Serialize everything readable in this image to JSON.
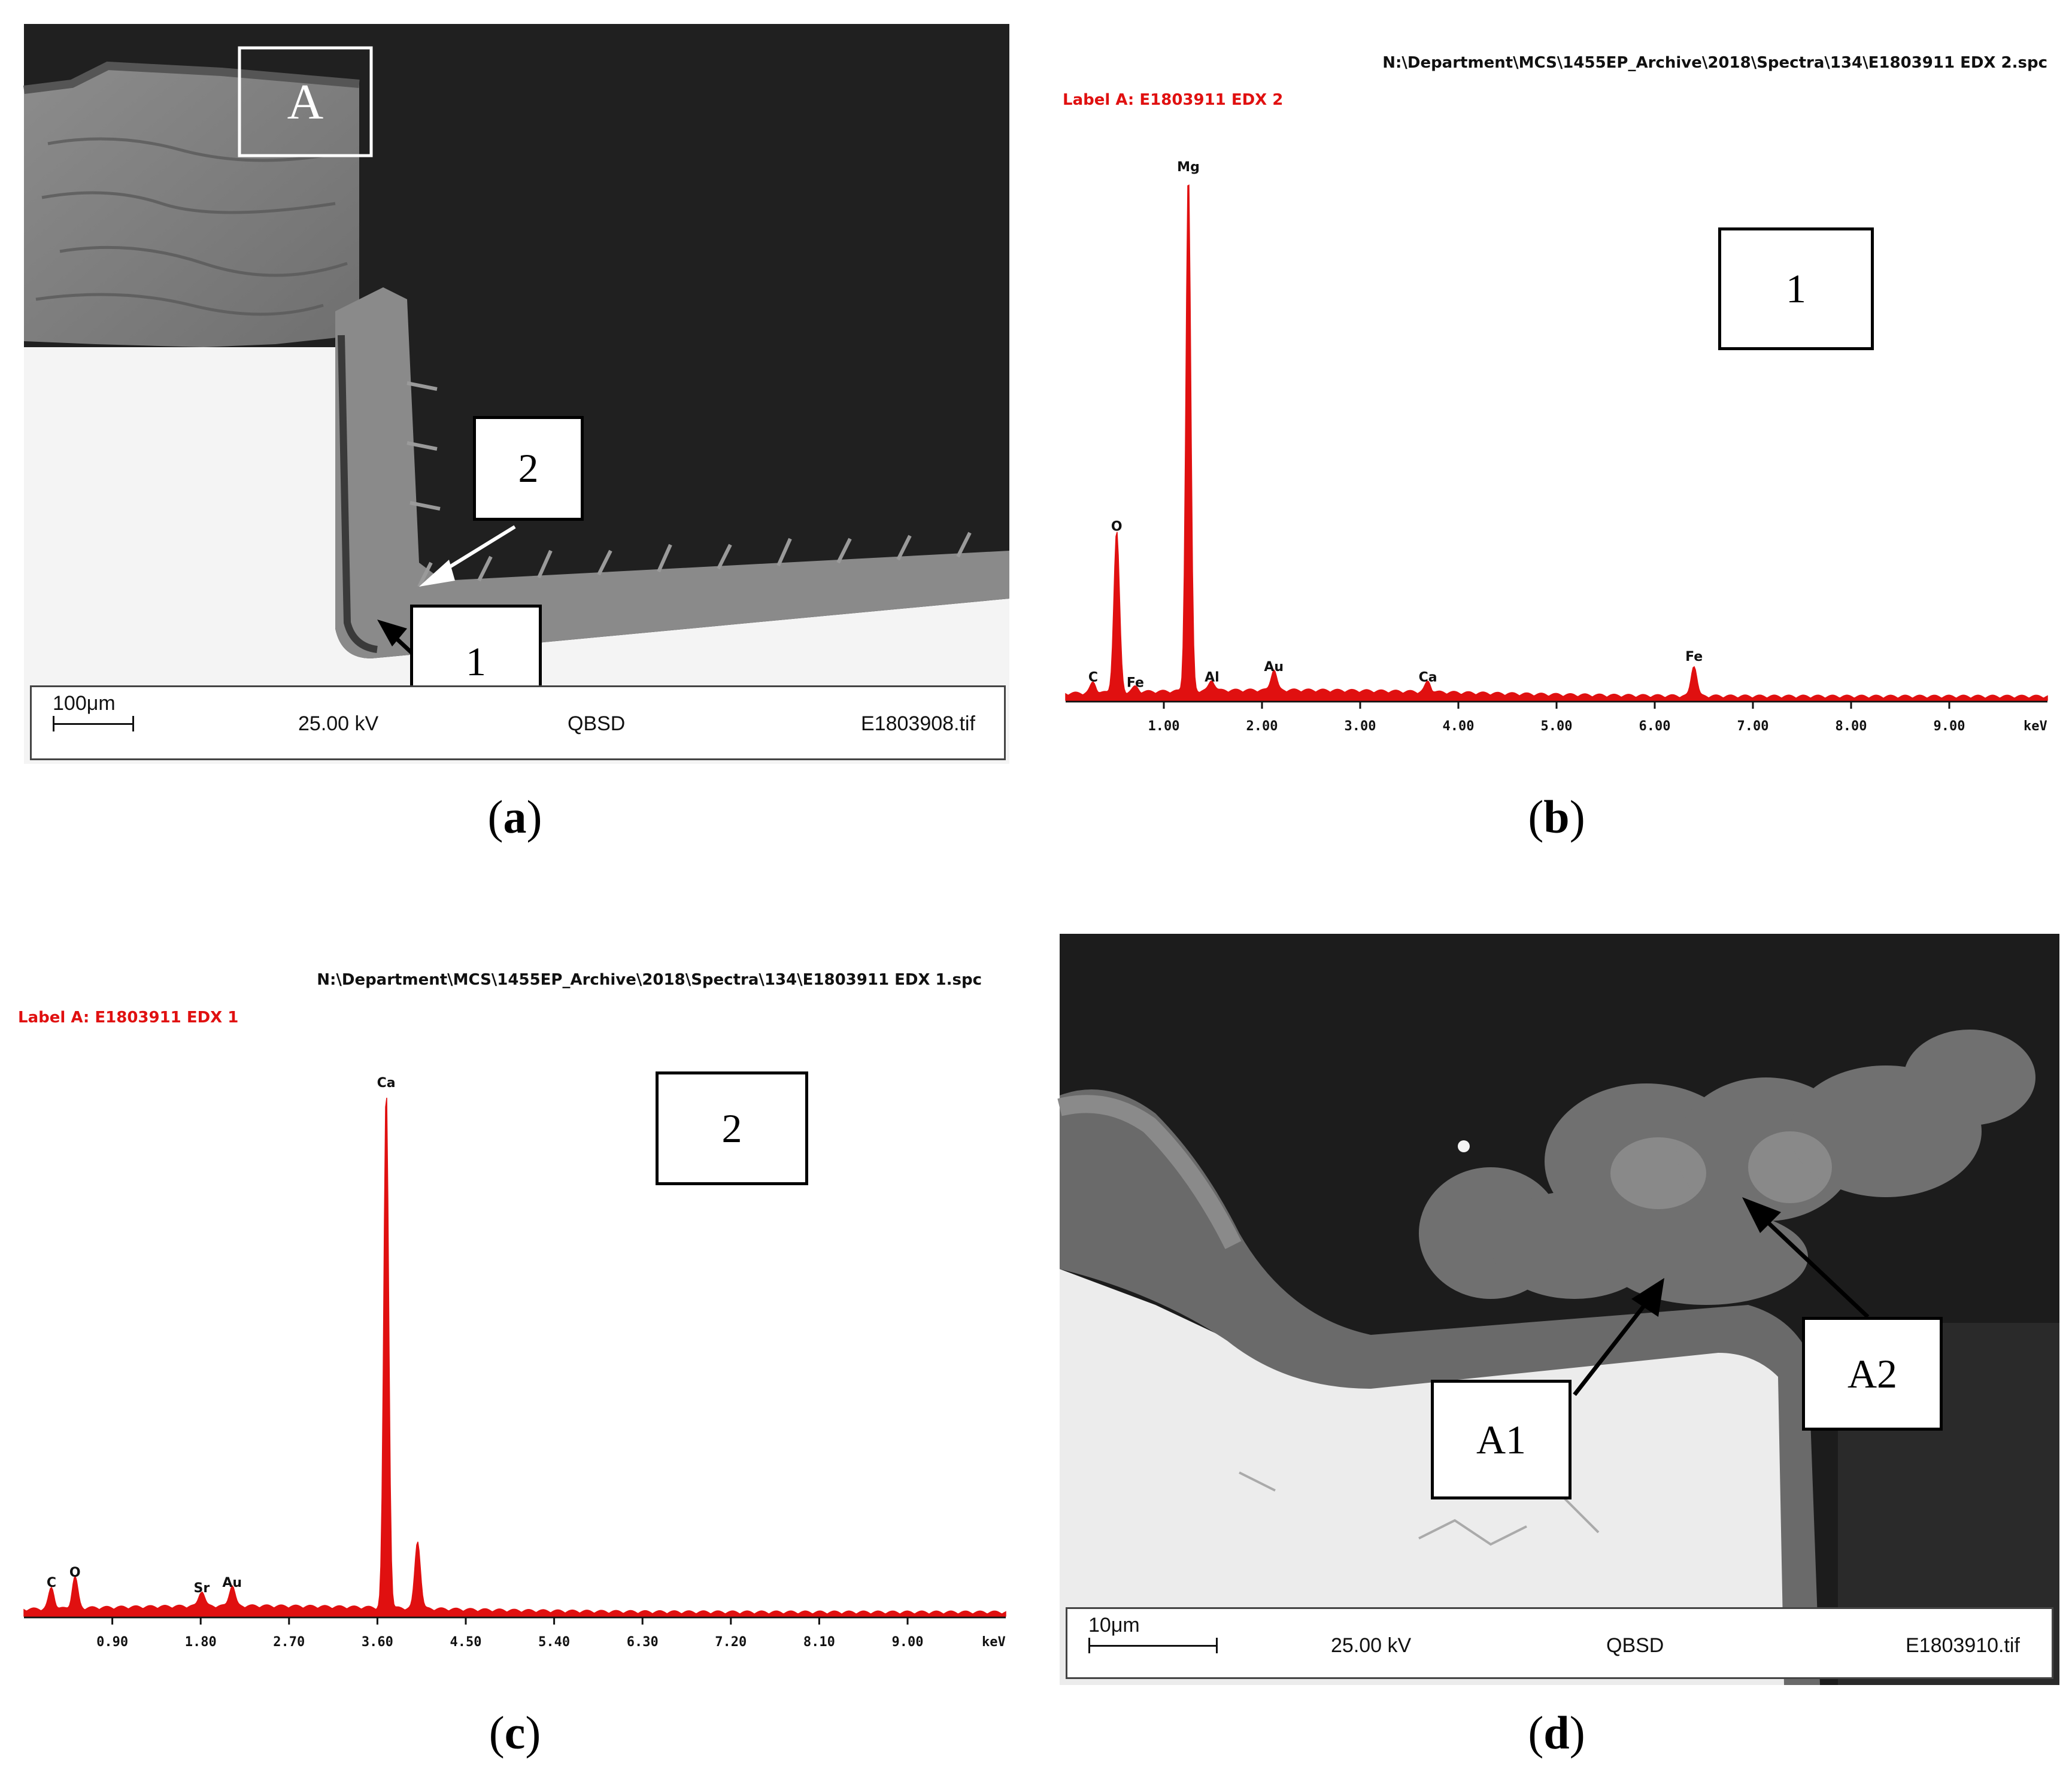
{
  "panel_a": {
    "caption": "a",
    "region_label": "A",
    "markers": [
      "1",
      "2"
    ],
    "scale": "100μm",
    "voltage": "25.00 kV",
    "detector": "QBSD",
    "filename": "E1803908.tif"
  },
  "panel_b": {
    "caption": "b",
    "path": "N:\\Department\\MCS\\1455EP_Archive\\2018\\Spectra\\134\\E1803911 EDX 2.spc",
    "label": "Label A: E1803911 EDX 2",
    "box_label": "1",
    "unit": "keV"
  },
  "panel_c": {
    "caption": "c",
    "path": "N:\\Department\\MCS\\1455EP_Archive\\2018\\Spectra\\134\\E1803911 EDX 1.spc",
    "label": "Label A: E1803911 EDX 1",
    "box_label": "2",
    "unit": "keV"
  },
  "panel_d": {
    "caption": "d",
    "markers": [
      "A1",
      "A2"
    ],
    "scale": "10μm",
    "voltage": "25.00 kV",
    "detector": "QBSD",
    "filename": "E1803910.tif"
  },
  "chart_data": [
    {
      "type": "line",
      "panel": "b",
      "xlabel": "keV",
      "xlim": [
        0,
        10
      ],
      "x_ticks": [
        "1.00",
        "2.00",
        "3.00",
        "4.00",
        "5.00",
        "6.00",
        "7.00",
        "8.00",
        "9.00"
      ],
      "x_tick_values": [
        1,
        2,
        3,
        4,
        5,
        6,
        7,
        8,
        9
      ],
      "peaks": [
        {
          "label": "C",
          "x": 0.28,
          "height": 0.02
        },
        {
          "label": "O",
          "x": 0.52,
          "height": 0.31
        },
        {
          "label": "Fe",
          "x": 0.71,
          "height": 0.01
        },
        {
          "label": "Mg",
          "x": 1.25,
          "height": 1.0
        },
        {
          "label": "Al",
          "x": 1.49,
          "height": 0.02
        },
        {
          "label": "Au",
          "x": 2.12,
          "height": 0.04
        },
        {
          "label": "Ca",
          "x": 3.69,
          "height": 0.02
        },
        {
          "label": "Fe",
          "x": 6.4,
          "height": 0.06
        }
      ],
      "color": "#e01010"
    },
    {
      "type": "line",
      "panel": "c",
      "xlabel": "keV",
      "xlim": [
        0,
        10
      ],
      "x_ticks": [
        "0.90",
        "1.80",
        "2.70",
        "3.60",
        "4.50",
        "5.40",
        "6.30",
        "7.20",
        "8.10",
        "9.00"
      ],
      "x_tick_values": [
        0.9,
        1.8,
        2.7,
        3.6,
        4.5,
        5.4,
        6.3,
        7.2,
        8.1,
        9.0
      ],
      "peaks": [
        {
          "label": "C",
          "x": 0.28,
          "height": 0.04
        },
        {
          "label": "O",
          "x": 0.52,
          "height": 0.06
        },
        {
          "label": "Sr",
          "x": 1.81,
          "height": 0.03
        },
        {
          "label": "Au",
          "x": 2.12,
          "height": 0.04
        },
        {
          "label": "Ca",
          "x": 3.69,
          "height": 1.0
        },
        {
          "label": "",
          "x": 4.01,
          "height": 0.13
        }
      ],
      "color": "#e01010"
    }
  ]
}
